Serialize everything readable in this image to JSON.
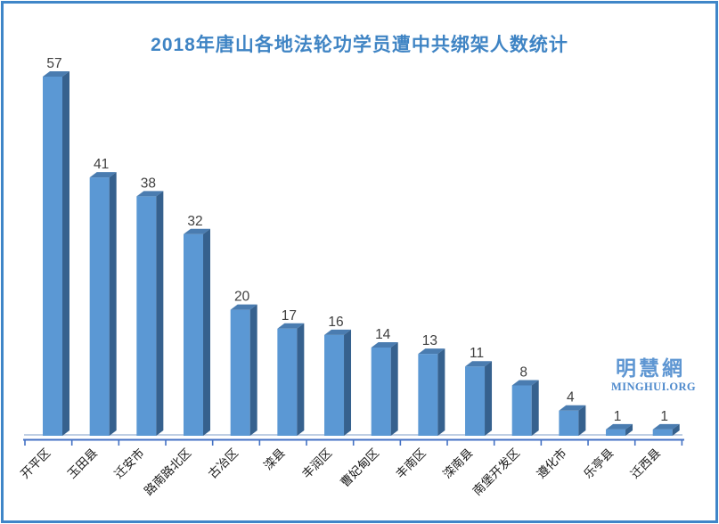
{
  "frame": {
    "border_color": "#3f86c8",
    "background": "#ffffff"
  },
  "watermark": {
    "cjk": "明慧網",
    "latin": "MINGHUI.ORG",
    "color": "#5e96d2"
  },
  "chart_data": {
    "type": "bar",
    "style": "3d",
    "title": "2018年唐山各地法轮功学员遭中共绑架人数统计",
    "title_color": "#3f84c4",
    "categories": [
      "开平区",
      "玉田县",
      "迁安市",
      "路南路北区",
      "古冶区",
      "滦县",
      "丰润区",
      "曹妃甸区",
      "丰南区",
      "滦南县",
      "南堡开发区",
      "遵化市",
      "乐亭县",
      "迁西县"
    ],
    "values": [
      57,
      41,
      38,
      32,
      20,
      17,
      16,
      14,
      13,
      11,
      8,
      4,
      1,
      1
    ],
    "xlabel": "",
    "ylabel": "",
    "ylim": [
      0,
      60
    ],
    "grid": false,
    "legend": "none",
    "data_labels": true,
    "bar_front_color": "#5b98d4",
    "bar_side_color": "#36618e",
    "bar_top_color": "#4a7cb0",
    "value_label_color": "#3f3f3f",
    "axis_color": "#4472c4",
    "floor_line_color": "#a8bedb",
    "category_label_color": "#1a1a1a"
  }
}
